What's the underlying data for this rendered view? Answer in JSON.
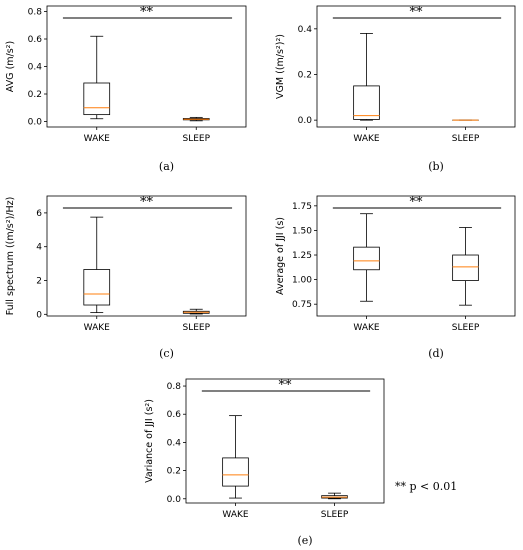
{
  "chart_data": [
    {
      "type": "box",
      "caption": "(a)",
      "ylabel": "AVG (m/s²)",
      "ylim": [
        -0.04,
        0.84
      ],
      "yticks": [
        0.0,
        0.2,
        0.4,
        0.6,
        0.8
      ],
      "ytick_labels": [
        "0.0",
        "0.2",
        "0.4",
        "0.6",
        "0.8"
      ],
      "categories": [
        "WAKE",
        "SLEEP"
      ],
      "boxes": [
        {
          "min": 0.02,
          "q1": 0.05,
          "median": 0.1,
          "q3": 0.28,
          "max": 0.62
        },
        {
          "min": 0.005,
          "q1": 0.012,
          "median": 0.016,
          "q3": 0.022,
          "max": 0.03
        }
      ],
      "significance": "**"
    },
    {
      "type": "box",
      "caption": "(b)",
      "ylabel": "VGM ((m/s²)²)",
      "ylim": [
        -0.03,
        0.5
      ],
      "yticks": [
        0.0,
        0.2,
        0.4
      ],
      "ytick_labels": [
        "0.0",
        "0.2",
        "0.4"
      ],
      "categories": [
        "WAKE",
        "SLEEP"
      ],
      "boxes": [
        {
          "min": 0.0,
          "q1": 0.003,
          "median": 0.02,
          "q3": 0.15,
          "max": 0.38
        },
        {
          "min": 0.0,
          "q1": 0.0,
          "median": 0.0,
          "q3": 0.0,
          "max": 0.0
        }
      ],
      "significance": "**"
    },
    {
      "type": "box",
      "caption": "(c)",
      "ylabel": "Full spectrum ((m/s²)/Hz)",
      "ylim": [
        -0.1,
        7.0
      ],
      "yticks": [
        0,
        2,
        4,
        6
      ],
      "ytick_labels": [
        "0",
        "2",
        "4",
        "6"
      ],
      "categories": [
        "WAKE",
        "SLEEP"
      ],
      "boxes": [
        {
          "min": 0.1,
          "q1": 0.55,
          "median": 1.2,
          "q3": 2.65,
          "max": 5.75
        },
        {
          "min": 0.02,
          "q1": 0.06,
          "median": 0.12,
          "q3": 0.18,
          "max": 0.3
        }
      ],
      "significance": "**"
    },
    {
      "type": "box",
      "caption": "(d)",
      "ylabel": "Average of JJI (s)",
      "ylim": [
        0.63,
        1.85
      ],
      "yticks": [
        0.75,
        1.0,
        1.25,
        1.5,
        1.75
      ],
      "ytick_labels": [
        "0.75",
        "1.00",
        "1.25",
        "1.50",
        "1.75"
      ],
      "categories": [
        "WAKE",
        "SLEEP"
      ],
      "boxes": [
        {
          "min": 0.78,
          "q1": 1.1,
          "median": 1.19,
          "q3": 1.33,
          "max": 1.67
        },
        {
          "min": 0.74,
          "q1": 0.99,
          "median": 1.13,
          "q3": 1.25,
          "max": 1.53
        }
      ],
      "significance": "**"
    },
    {
      "type": "box",
      "caption": "(e)",
      "ylabel": "Variance of JJI (s²)",
      "ylim": [
        -0.03,
        0.85
      ],
      "yticks": [
        0.0,
        0.2,
        0.4,
        0.6,
        0.8
      ],
      "ytick_labels": [
        "0.0",
        "0.2",
        "0.4",
        "0.6",
        "0.8"
      ],
      "categories": [
        "WAKE",
        "SLEEP"
      ],
      "boxes": [
        {
          "min": 0.005,
          "q1": 0.09,
          "median": 0.17,
          "q3": 0.29,
          "max": 0.59
        },
        {
          "min": 0.0,
          "q1": 0.005,
          "median": 0.012,
          "q3": 0.022,
          "max": 0.04
        }
      ],
      "significance": "**"
    }
  ],
  "footnote": "** p < 0.01",
  "colors": {
    "box": "#000000",
    "median": "#ff7f0e",
    "sigline": "#000000"
  }
}
